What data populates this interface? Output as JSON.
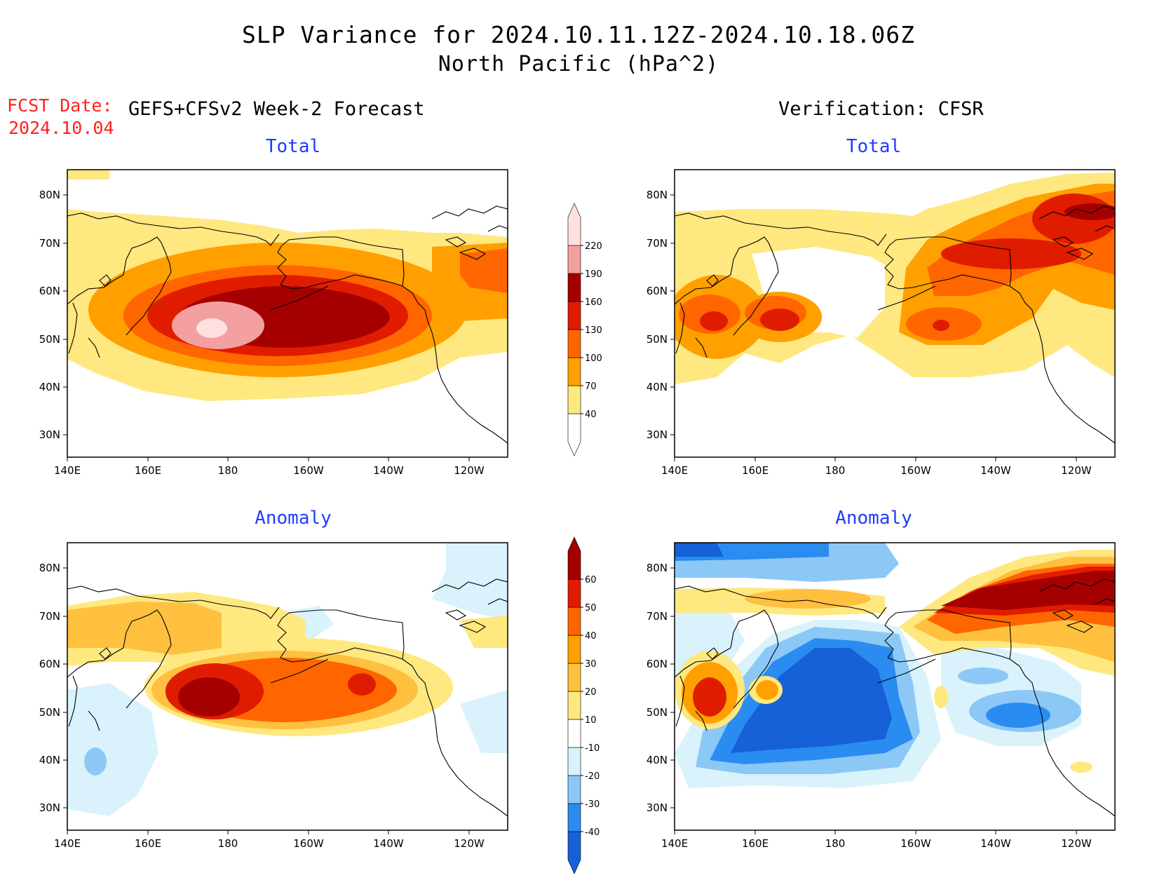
{
  "header": {
    "title_line1": "SLP Variance for 2024.10.11.12Z-2024.10.18.06Z",
    "title_line2": "North Pacific (hPa^2)",
    "fcst_label": "FCST Date:",
    "fcst_date": "2024.10.04",
    "left_heading": "GEFS+CFSv2 Week-2 Forecast",
    "right_heading": "Verification: CFSR"
  },
  "panels": {
    "tl_title": "Total",
    "tr_title": "Total",
    "bl_title": "Anomaly",
    "br_title": "Anomaly"
  },
  "axes": {
    "x_ticks": [
      "140E",
      "160E",
      "180",
      "160W",
      "140W",
      "120W"
    ],
    "y_ticks": [
      "80N",
      "70N",
      "60N",
      "50N",
      "40N",
      "30N"
    ]
  },
  "colorbar_total": {
    "levels": [
      "40",
      "70",
      "100",
      "130",
      "160",
      "190",
      "220"
    ],
    "colors": [
      "#ffffff",
      "#ffe880",
      "#ffa000",
      "#ff6600",
      "#e01c00",
      "#a50000",
      "#f5a0a0",
      "#ffe0e0"
    ]
  },
  "colorbar_anomaly": {
    "levels": [
      "-40",
      "-30",
      "-20",
      "-10",
      "10",
      "20",
      "30",
      "40",
      "50",
      "60"
    ],
    "colors": [
      "#1660d8",
      "#2a8cf0",
      "#8cc8f5",
      "#d9f2fb",
      "#ffffff",
      "#ffe880",
      "#ffc040",
      "#ffa000",
      "#ff6600",
      "#e01c00",
      "#a50000"
    ]
  }
}
